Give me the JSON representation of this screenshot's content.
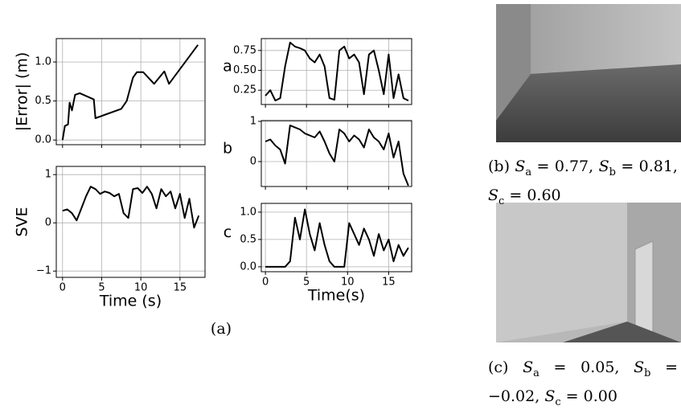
{
  "chart_data": [
    {
      "type": "line",
      "ylabel": "|Error| (m)",
      "color": "#000000",
      "grid": true,
      "xtick_labels": false,
      "x": [
        0,
        0.3,
        0.7,
        0.9,
        1.2,
        1.6,
        2.2,
        4,
        4.2,
        7.5,
        8.2,
        9,
        9.5,
        10.3,
        11.7,
        13,
        13.6,
        17.3
      ],
      "values": [
        0,
        0.18,
        0.2,
        0.48,
        0.38,
        0.58,
        0.6,
        0.52,
        0.28,
        0.4,
        0.5,
        0.8,
        0.87,
        0.87,
        0.72,
        0.88,
        0.72,
        1.22
      ],
      "xlim": [
        -0.8,
        18.2
      ],
      "ylim": [
        -0.06,
        1.3
      ],
      "xticks": [
        0,
        5,
        10,
        15
      ],
      "yticks": [
        {
          "value": 0,
          "label": "0.0"
        },
        {
          "value": 0.5,
          "label": "0.5"
        },
        {
          "value": 1,
          "label": "1.0"
        }
      ]
    },
    {
      "type": "line",
      "ylabel": "SVE",
      "xlabel": "Time (s)",
      "color": "#000000",
      "grid": true,
      "xtick_labels": true,
      "x": [
        0,
        0.6,
        1.2,
        1.8,
        2.4,
        3,
        3.6,
        4.2,
        4.8,
        5.4,
        6,
        6.6,
        7.2,
        7.8,
        8.4,
        9,
        9.6,
        10.2,
        10.8,
        11.4,
        12,
        12.6,
        13.2,
        13.8,
        14.4,
        15,
        15.6,
        16.2,
        16.8,
        17.4
      ],
      "values": [
        0.25,
        0.28,
        0.2,
        0.05,
        0.3,
        0.55,
        0.75,
        0.7,
        0.6,
        0.65,
        0.62,
        0.55,
        0.6,
        0.2,
        0.1,
        0.7,
        0.72,
        0.62,
        0.75,
        0.6,
        0.3,
        0.7,
        0.55,
        0.65,
        0.3,
        0.6,
        0.1,
        0.5,
        -0.1,
        0.15
      ],
      "xlim": [
        -0.8,
        18.2
      ],
      "ylim": [
        -1.13,
        1.17
      ],
      "xticks": [
        0,
        5,
        10,
        15
      ],
      "yticks": [
        {
          "value": -1,
          "label": "−1"
        },
        0,
        1
      ]
    },
    {
      "type": "line",
      "panel_label": "a",
      "color": "#000000",
      "grid": true,
      "xtick_labels": false,
      "x": [
        0,
        0.6,
        1.2,
        1.8,
        2.4,
        3,
        3.6,
        4.2,
        4.8,
        5.4,
        6,
        6.6,
        7.2,
        7.8,
        8.4,
        9,
        9.6,
        10.2,
        10.8,
        11.4,
        12,
        12.6,
        13.2,
        13.8,
        14.4,
        15,
        15.6,
        16.2,
        16.8,
        17.4
      ],
      "values": [
        0.18,
        0.25,
        0.12,
        0.15,
        0.55,
        0.85,
        0.8,
        0.78,
        0.75,
        0.65,
        0.6,
        0.7,
        0.55,
        0.15,
        0.13,
        0.75,
        0.8,
        0.65,
        0.7,
        0.6,
        0.2,
        0.7,
        0.75,
        0.5,
        0.2,
        0.7,
        0.15,
        0.45,
        0.15,
        0.12
      ],
      "xlim": [
        -0.5,
        17.8
      ],
      "ylim": [
        0.07,
        0.9
      ],
      "xticks": [
        0,
        5,
        10,
        15
      ],
      "yticks": [
        0.25,
        {
          "value": 0.5,
          "label": "0.50"
        },
        0.75
      ]
    },
    {
      "type": "line",
      "panel_label": "b",
      "color": "#000000",
      "grid": true,
      "xtick_labels": false,
      "x": [
        0,
        0.6,
        1.2,
        1.8,
        2.4,
        3,
        3.6,
        4.2,
        4.8,
        5.4,
        6,
        6.6,
        7.2,
        7.8,
        8.4,
        9,
        9.6,
        10.2,
        10.8,
        11.4,
        12,
        12.6,
        13.2,
        13.8,
        14.4,
        15,
        15.6,
        16.2,
        16.8,
        17.4
      ],
      "values": [
        0.5,
        0.55,
        0.4,
        0.3,
        -0.05,
        0.9,
        0.85,
        0.8,
        0.7,
        0.65,
        0.6,
        0.75,
        0.5,
        0.2,
        0,
        0.8,
        0.7,
        0.5,
        0.65,
        0.55,
        0.35,
        0.8,
        0.6,
        0.5,
        0.3,
        0.7,
        0.1,
        0.5,
        -0.3,
        -0.6
      ],
      "xlim": [
        -0.5,
        17.8
      ],
      "ylim": [
        -0.62,
        1.02
      ],
      "xticks": [
        0,
        5,
        10,
        15
      ],
      "yticks": [
        0,
        1
      ]
    },
    {
      "type": "line",
      "panel_label": "c",
      "xlabel": "Time(s)",
      "color": "#000000",
      "grid": true,
      "xtick_labels": true,
      "x": [
        0,
        0.6,
        1.2,
        1.8,
        2.4,
        3,
        3.6,
        4.2,
        4.8,
        5.4,
        6,
        6.6,
        7.2,
        7.8,
        8.4,
        9,
        9.6,
        10.2,
        10.8,
        11.4,
        12,
        12.6,
        13.2,
        13.8,
        14.4,
        15,
        15.6,
        16.2,
        16.8,
        17.4
      ],
      "values": [
        0,
        0,
        0,
        0,
        0,
        0.1,
        0.9,
        0.5,
        1.05,
        0.6,
        0.3,
        0.8,
        0.4,
        0.1,
        0,
        0,
        0,
        0.8,
        0.6,
        0.4,
        0.7,
        0.5,
        0.2,
        0.6,
        0.3,
        0.5,
        0.1,
        0.4,
        0.2,
        0.35
      ],
      "xlim": [
        -0.5,
        17.8
      ],
      "ylim": [
        -0.09,
        1.16
      ],
      "xticks": [
        0,
        5,
        10,
        15
      ],
      "yticks": [
        {
          "value": 0,
          "label": "0.0"
        },
        {
          "value": 0.5,
          "label": "0.5"
        },
        {
          "value": 1,
          "label": "1.0"
        }
      ]
    }
  ],
  "figure_caption": "(a)",
  "caption_b": {
    "label": "(b)",
    "terms": [
      {
        "symbol": "S",
        "sub": "a",
        "eq": "=",
        "value": "0.77,"
      },
      {
        "symbol": "S",
        "sub": "b",
        "eq": "=",
        "value": "0.81,"
      },
      {
        "symbol": "S",
        "sub": "c",
        "eq": "=",
        "value": "0.60"
      }
    ]
  },
  "caption_c": {
    "label": "(c)",
    "terms": [
      {
        "symbol": "S",
        "sub": "a",
        "eq": "=",
        "value": "0.05,"
      },
      {
        "symbol": "S",
        "sub": "b",
        "eq": "=",
        "value": "−0.02,"
      },
      {
        "symbol": "S",
        "sub": "c",
        "eq": "=",
        "value": "0.00"
      }
    ]
  }
}
